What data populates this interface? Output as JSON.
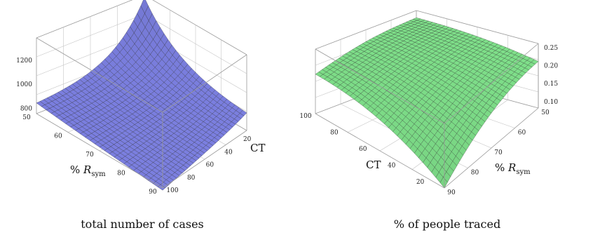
{
  "chart_data": [
    {
      "type": "surface",
      "title": "total number of cases",
      "xlabel": "% R_sym",
      "ylabel": "CT",
      "zlabel": "",
      "x_ticks": [
        "50",
        "60",
        "70",
        "80",
        "90"
      ],
      "y_ticks": [
        "20",
        "40",
        "60",
        "80",
        "100"
      ],
      "z_ticks": [
        "800",
        "1000",
        "1200"
      ],
      "xlim": [
        50,
        90
      ],
      "ylim": [
        10,
        100
      ],
      "zlim": [
        750,
        1380
      ],
      "grid": true,
      "surface_color": "#7b7fe0",
      "corner_values": [
        {
          "x": 50,
          "y": 10,
          "z": 1360
        },
        {
          "x": 90,
          "y": 10,
          "z": 960
        },
        {
          "x": 50,
          "y": 100,
          "z": 820
        },
        {
          "x": 90,
          "y": 100,
          "z": 730
        }
      ]
    },
    {
      "type": "surface",
      "title": "% of people traced",
      "xlabel": "% R_sym",
      "ylabel": "CT",
      "zlabel": "",
      "x_ticks": [
        "50",
        "60",
        "70",
        "80",
        "90"
      ],
      "y_ticks": [
        "20",
        "40",
        "60",
        "80",
        "100"
      ],
      "z_ticks": [
        "0.10",
        "0.15",
        "0.20",
        "0.25"
      ],
      "xlim": [
        50,
        90
      ],
      "ylim": [
        10,
        100
      ],
      "zlim": [
        0.08,
        0.26
      ],
      "grid": true,
      "surface_color": "#7fe08a",
      "corner_values": [
        {
          "x": 50,
          "y": 100,
          "z": 0.24
        },
        {
          "x": 50,
          "y": 10,
          "z": 0.21
        },
        {
          "x": 90,
          "y": 100,
          "z": 0.19
        },
        {
          "x": 90,
          "y": 10,
          "z": 0.08
        }
      ]
    }
  ]
}
